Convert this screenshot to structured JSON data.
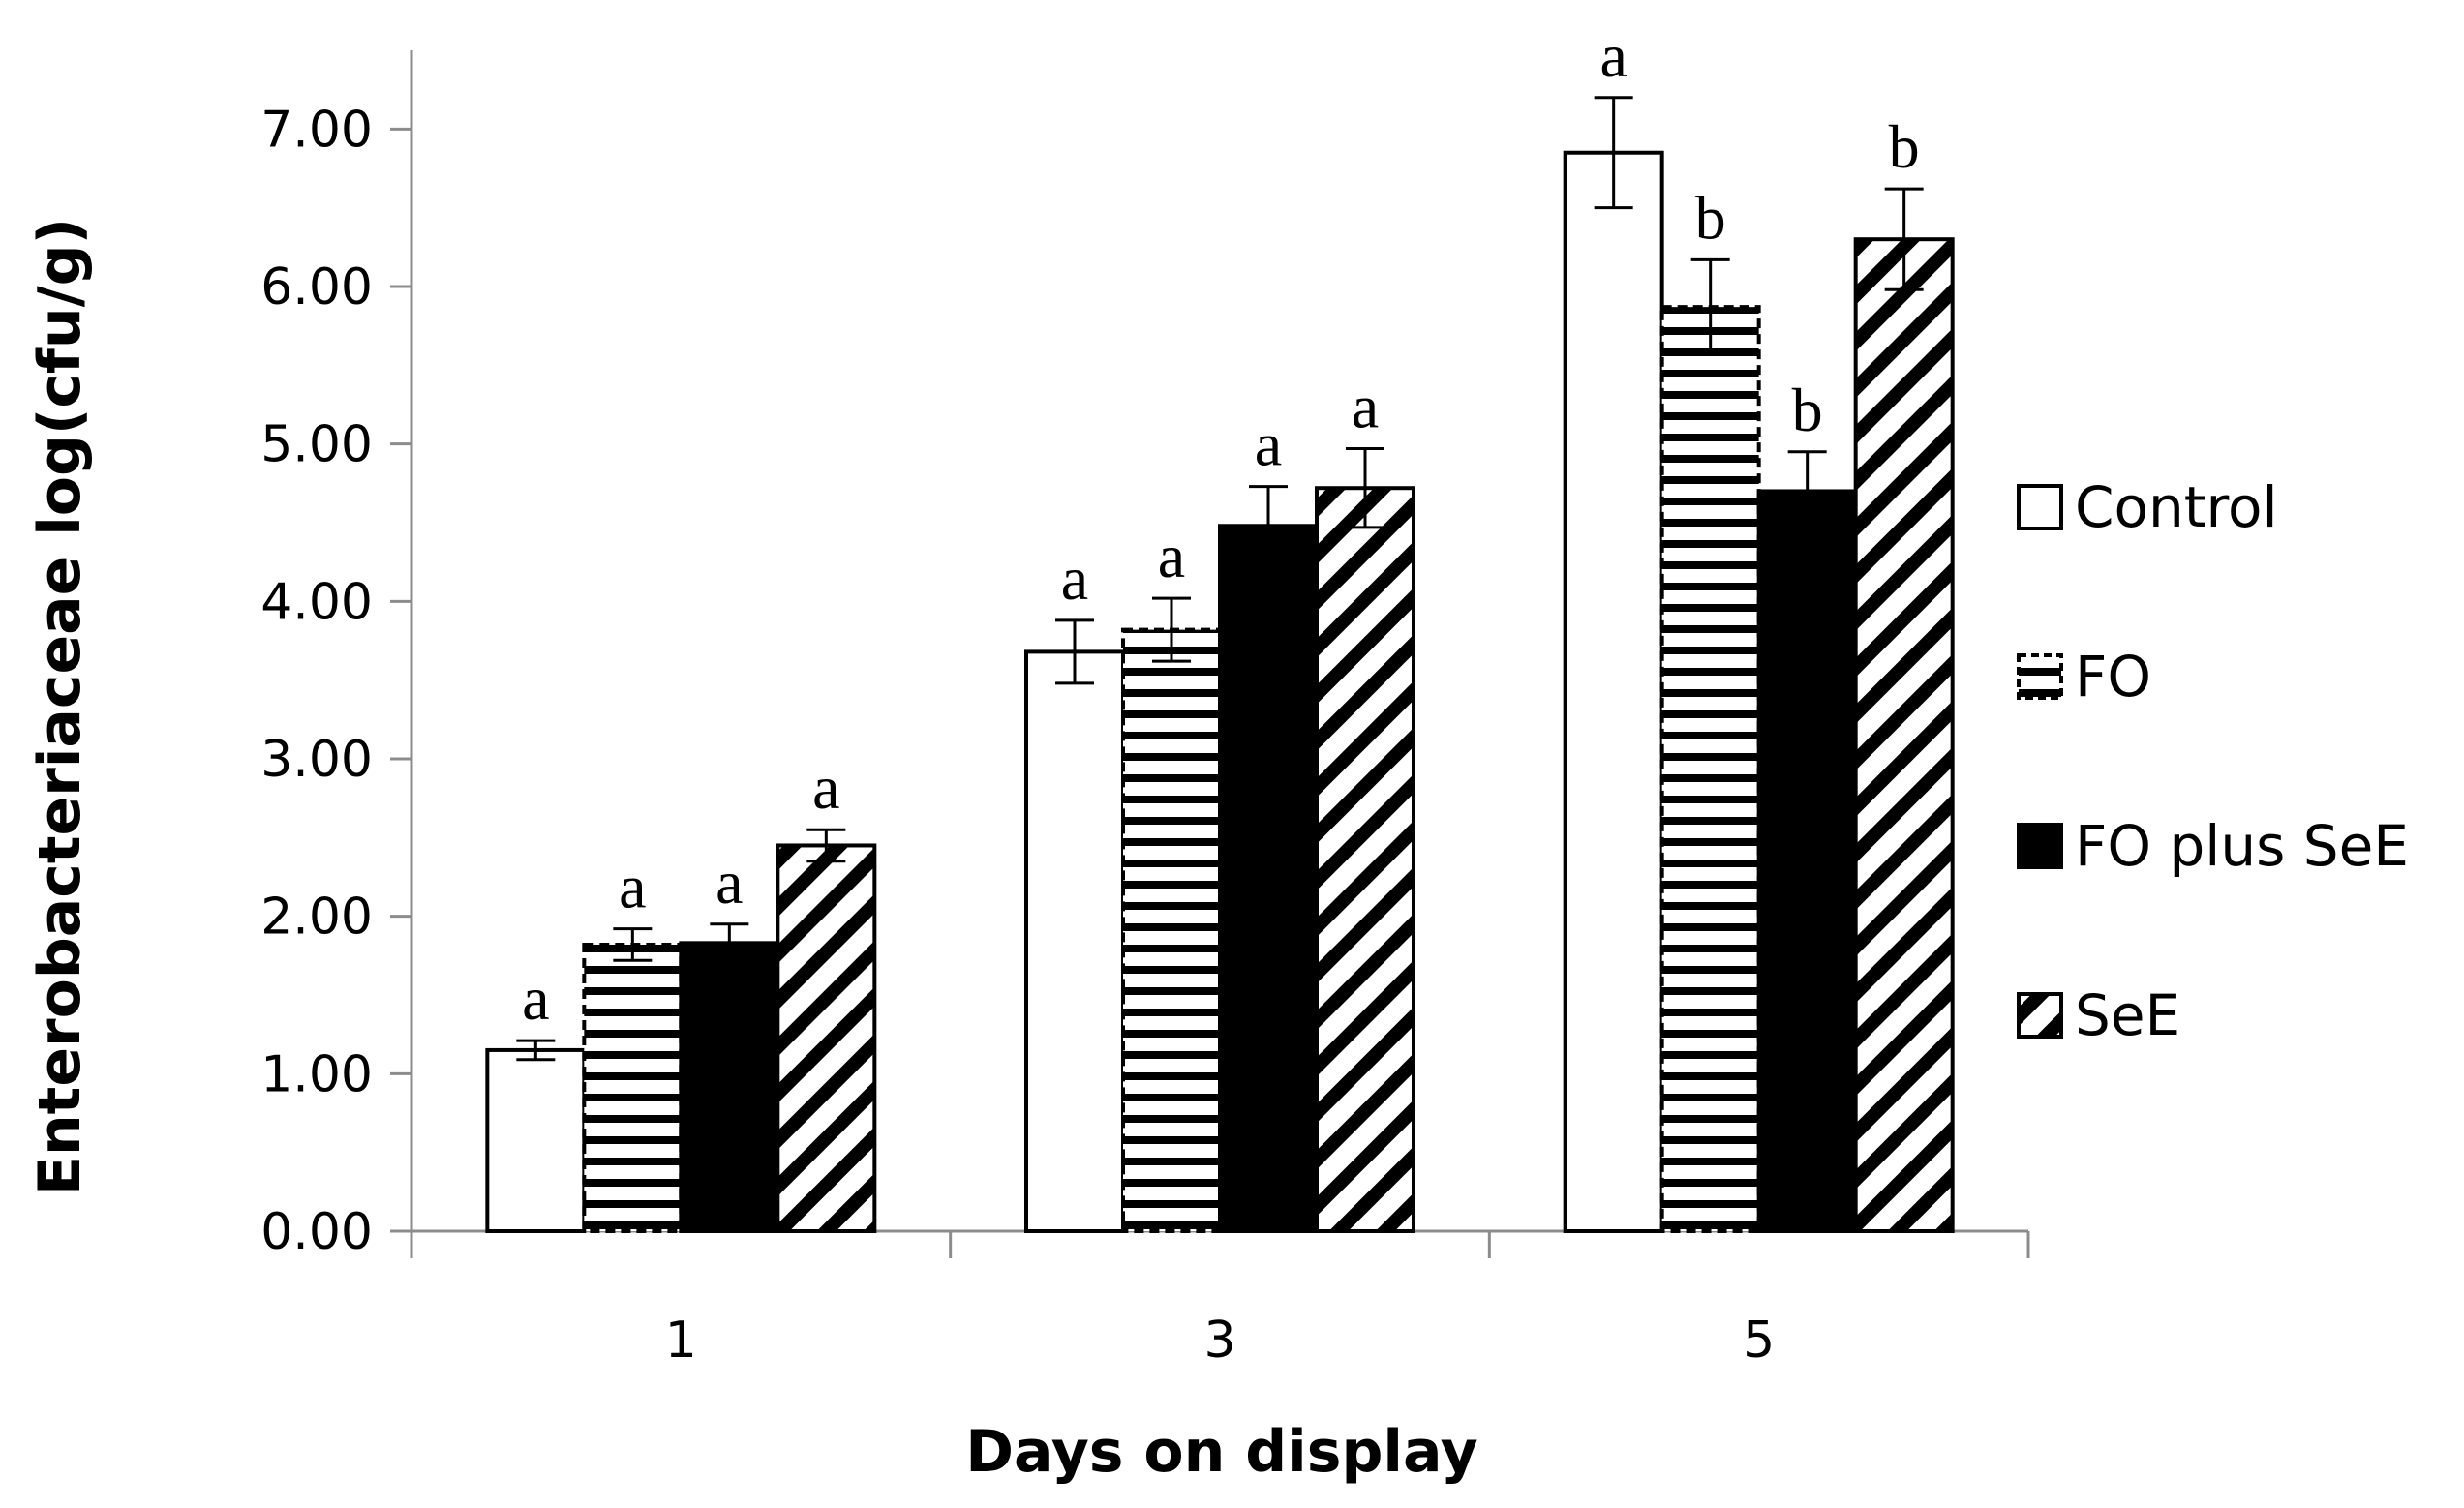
{
  "chart_data": {
    "type": "bar",
    "title": "",
    "xlabel": "Days on display",
    "ylabel": "Enterobacteriaceae log(cfu/g)",
    "ylim": [
      0,
      7.5
    ],
    "yticks": [
      "0.00",
      "1.00",
      "2.00",
      "3.00",
      "4.00",
      "5.00",
      "6.00",
      "7.00"
    ],
    "categories": [
      "1",
      "3",
      "5"
    ],
    "legend_position": "right",
    "series": [
      {
        "name": "Control",
        "pattern": "plain-white",
        "values": [
          1.15,
          3.68,
          6.85
        ],
        "errors": [
          0.06,
          0.2,
          0.35
        ],
        "letters": [
          "a",
          "a",
          "a"
        ]
      },
      {
        "name": "FO",
        "pattern": "horizontal-stripes",
        "values": [
          1.82,
          3.82,
          5.87
        ],
        "errors": [
          0.1,
          0.2,
          0.3
        ],
        "letters": [
          "a",
          "a",
          "b"
        ]
      },
      {
        "name": "FO plus SeE",
        "pattern": "solid-black",
        "values": [
          1.83,
          4.48,
          4.7
        ],
        "errors": [
          0.12,
          0.25,
          0.25
        ],
        "letters": [
          "a",
          "a",
          "b"
        ]
      },
      {
        "name": "SeE",
        "pattern": "diagonal-stripes",
        "values": [
          2.45,
          4.72,
          6.3
        ],
        "errors": [
          0.1,
          0.25,
          0.32
        ],
        "letters": [
          "a",
          "a",
          "b"
        ]
      }
    ],
    "colors": {
      "bar_outline": "#000000",
      "fill_light": "#ffffff",
      "fill_dark": "#000000"
    }
  }
}
